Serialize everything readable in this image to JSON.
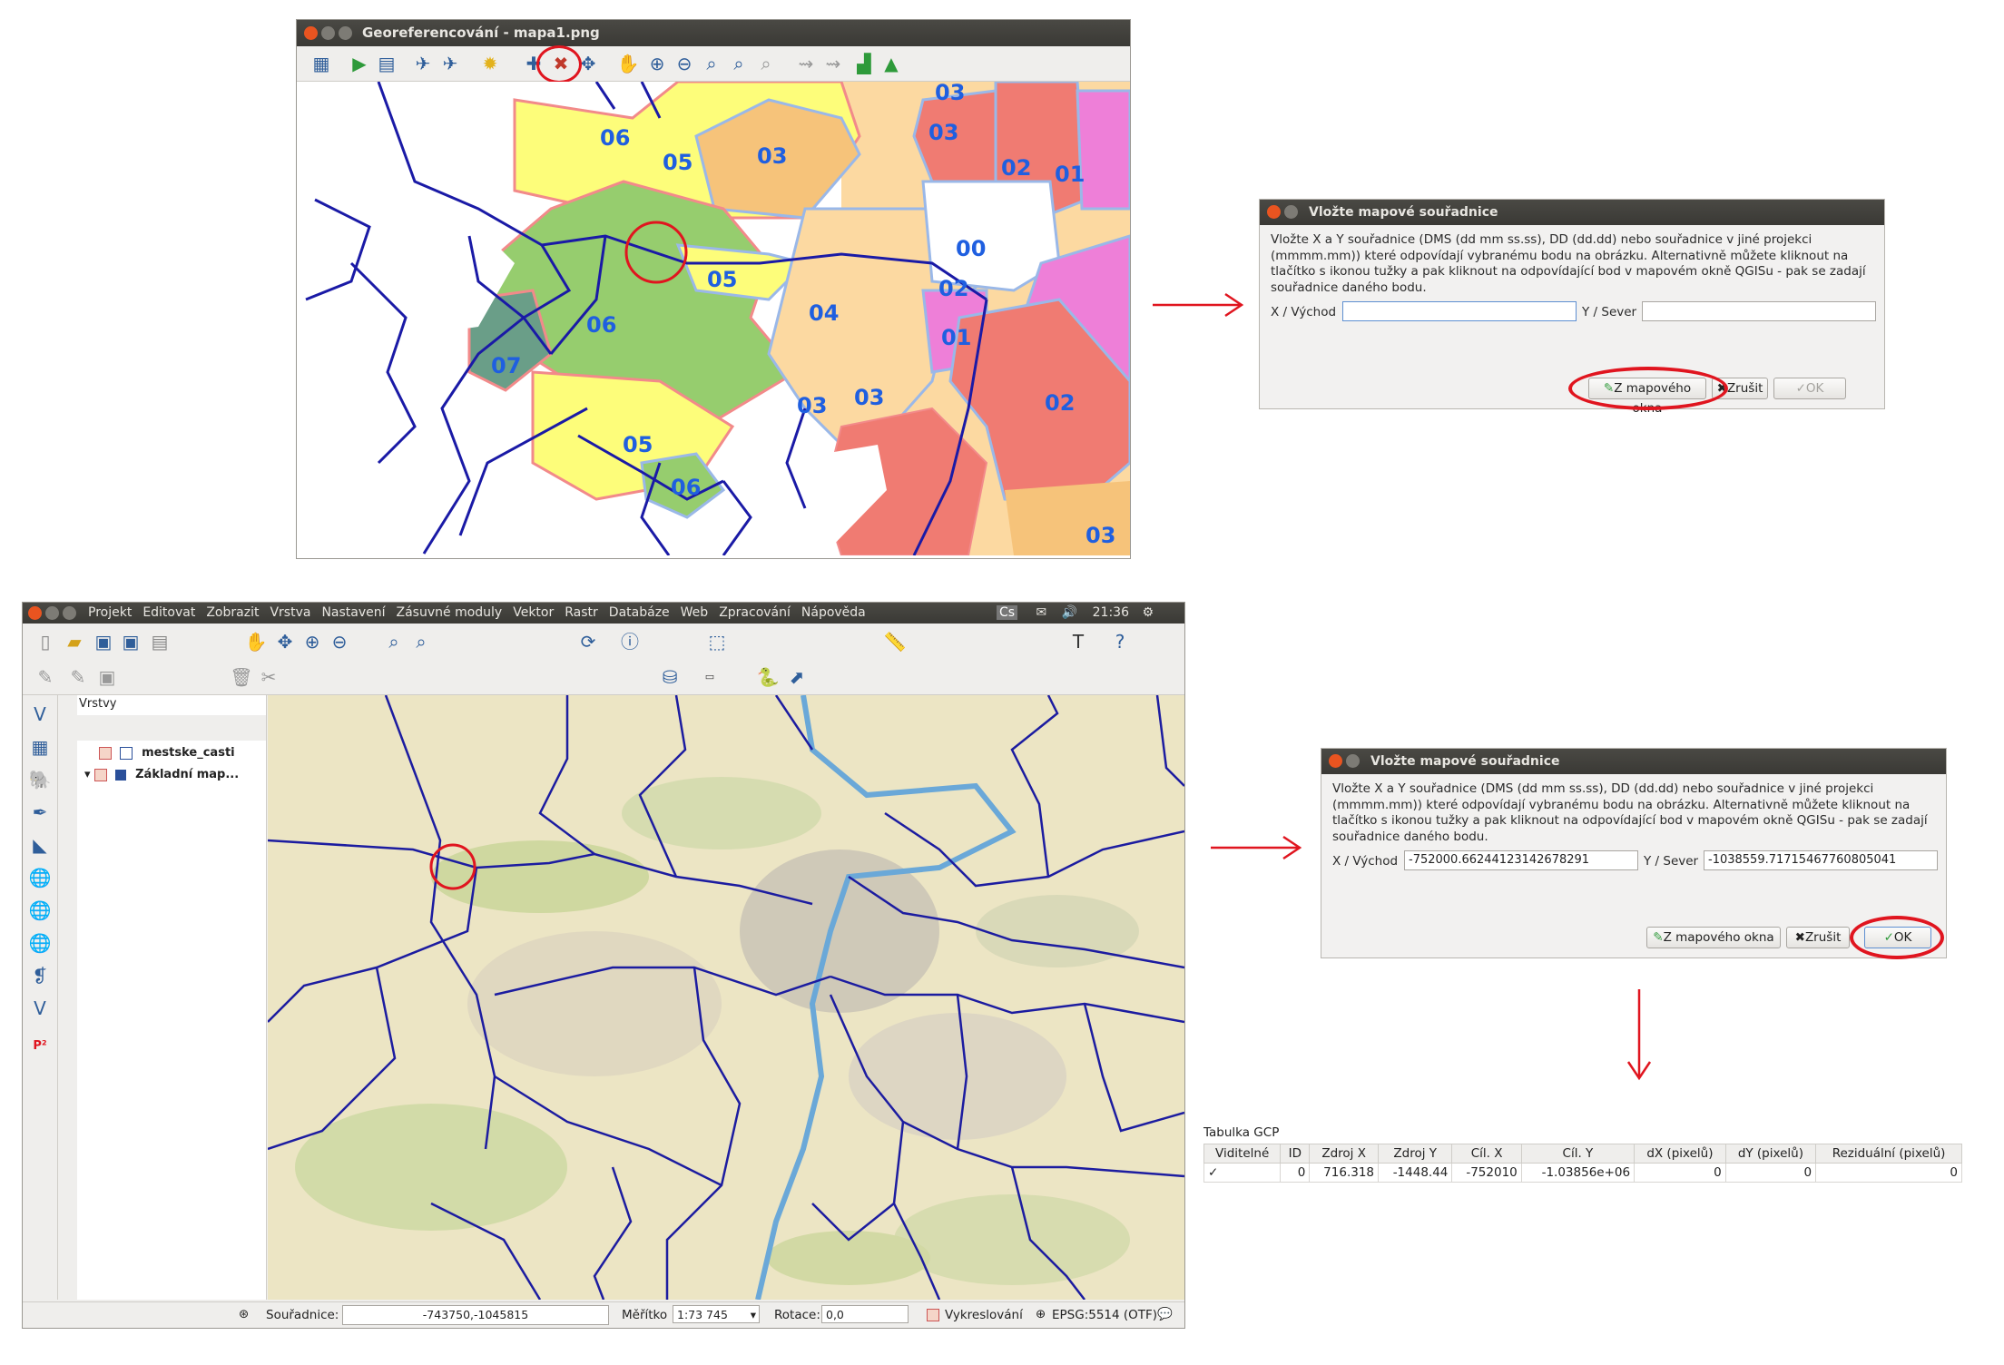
{
  "georef_window": {
    "title": "Georeferencování - mapa1.png",
    "districts": [
      {
        "label": "06"
      },
      {
        "label": "05"
      },
      {
        "label": "03"
      },
      {
        "label": "03"
      },
      {
        "label": "02"
      },
      {
        "label": "01"
      },
      {
        "label": "00"
      },
      {
        "label": "05"
      },
      {
        "label": "04"
      },
      {
        "label": "02"
      },
      {
        "label": "06"
      },
      {
        "label": "01"
      },
      {
        "label": "07"
      },
      {
        "label": "03"
      },
      {
        "label": "03"
      },
      {
        "label": "02"
      },
      {
        "label": "05"
      },
      {
        "label": "06"
      },
      {
        "label": "03"
      },
      {
        "label": "03"
      }
    ]
  },
  "dialog_top": {
    "title": "Vložte mapové souřadnice",
    "text_line1": "Vložte X a Y souřadnice (DMS (dd mm ss.ss), DD (dd.dd) nebo souřadnice v jiné projekci",
    "text_line2": "(mmmm.mm)) které odpovídají vybranému bodu na obrázku. Alternativně můžete kliknout na",
    "text_line3": "tlačítko s ikonou tužky a pak kliknout na odpovídající bod v mapovém okně QGISu - pak se zadají",
    "text_line4": "souřadnice daného bodu.",
    "x_label": "X / Východ",
    "y_label": "Y / Sever",
    "x_value": "",
    "y_value": "",
    "btn_from_map": "Z mapového okna",
    "btn_cancel": "Zrušit",
    "btn_ok": "OK"
  },
  "dialog_bottom": {
    "title": "Vložte mapové souřadnice",
    "text_line1": "Vložte X a Y souřadnice (DMS (dd mm ss.ss), DD (dd.dd) nebo souřadnice v jiné projekci",
    "text_line2": "(mmmm.mm)) které odpovídají vybranému bodu na obrázku. Alternativně můžete kliknout na",
    "text_line3": "tlačítko s ikonou tužky a pak kliknout na odpovídající bod v mapovém okně QGISu - pak se zadají",
    "text_line4": "souřadnice daného bodu.",
    "x_label": "X / Východ",
    "y_label": "Y / Sever",
    "x_value": "-752000.66244123142678291",
    "y_value": "-1038559.71715467760805041",
    "btn_from_map": "Z mapového okna",
    "btn_cancel": "Zrušit",
    "btn_ok": "OK"
  },
  "qgis": {
    "menu": [
      "Projekt",
      "Editovat",
      "Zobrazit",
      "Vrstva",
      "Nastavení",
      "Zásuvné moduly",
      "Vektor",
      "Rastr",
      "Databáze",
      "Web",
      "Zpracování",
      "Nápověda"
    ],
    "tray_lang": "Cs",
    "clock": "21:36",
    "layers_title": "Vrstvy",
    "layers": [
      "mestske_casti",
      "Základní map..."
    ],
    "status": {
      "coord_label": "Souřadnice:",
      "coord_value": "-743750,-1045815",
      "scale_label": "Měřítko",
      "scale_value": "1:73 745",
      "rotation_label": "Rotace:",
      "rotation_value": "0,0",
      "render_label": "Vykreslování",
      "crs": "EPSG:5514 (OTF)"
    }
  },
  "gcp_table": {
    "title": "Tabulka GCP",
    "headers": [
      "Viditelné",
      "ID",
      "Zdroj X",
      "Zdroj Y",
      "Cíl. X",
      "Cíl. Y",
      "dX (pixelů)",
      "dY (pixelů)",
      "Reziduální (pixelů)"
    ],
    "row": [
      "✓",
      "0",
      "716.318",
      "-1448.44",
      "-752010",
      "-1.03856e+06",
      "0",
      "0",
      "0"
    ]
  },
  "colors": {
    "red_annotation": "#e0151f",
    "district_blue": "#1f5fe0",
    "boundary": "#1a1aa6"
  }
}
